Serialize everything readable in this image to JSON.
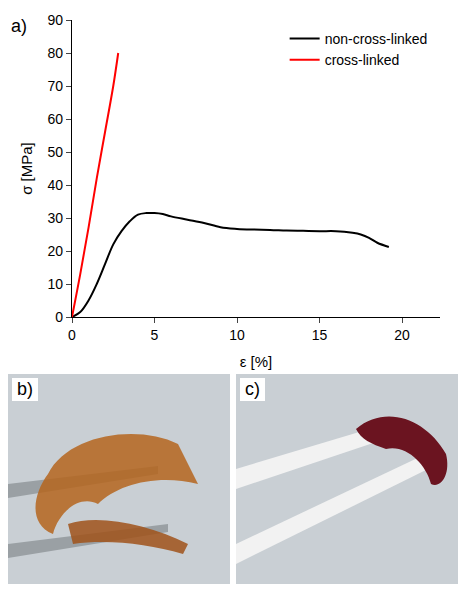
{
  "chart_data": {
    "type": "line",
    "panel_label": "a)",
    "x_label": "ε [%]",
    "y_label": "σ [MPa]",
    "xlim": [
      0,
      22.3
    ],
    "ylim": [
      0,
      90
    ],
    "xticks": [
      0,
      5,
      10,
      15,
      20
    ],
    "yticks": [
      0,
      10,
      20,
      30,
      40,
      50,
      60,
      70,
      80,
      90
    ],
    "grid": false,
    "legend": "top right",
    "series": [
      {
        "name": "non-cross-linked",
        "color": "#000000",
        "x": [
          0,
          0.5,
          1,
          1.5,
          2,
          2.5,
          3,
          3.5,
          4,
          4.5,
          5,
          5.5,
          6,
          7,
          8,
          9,
          10,
          11,
          12,
          13,
          14,
          15,
          16,
          17,
          17.5,
          18,
          18.5,
          19.2
        ],
        "values": [
          0,
          1.5,
          5,
          10,
          16,
          22,
          26,
          29,
          31,
          31.5,
          31.5,
          31.2,
          30.5,
          29.5,
          28.5,
          27.2,
          26.7,
          26.5,
          26.4,
          26.2,
          26.1,
          26,
          26,
          25.5,
          25,
          24,
          22.5,
          21.2
        ]
      },
      {
        "name": "cross-linked",
        "color": "#ff0000",
        "x": [
          0,
          0.5,
          1,
          1.5,
          2,
          2.5,
          2.8
        ],
        "values": [
          0,
          13,
          27,
          42,
          56,
          70,
          80
        ]
      }
    ]
  },
  "panels": [
    {
      "label": "b)"
    },
    {
      "label": "c)"
    }
  ]
}
